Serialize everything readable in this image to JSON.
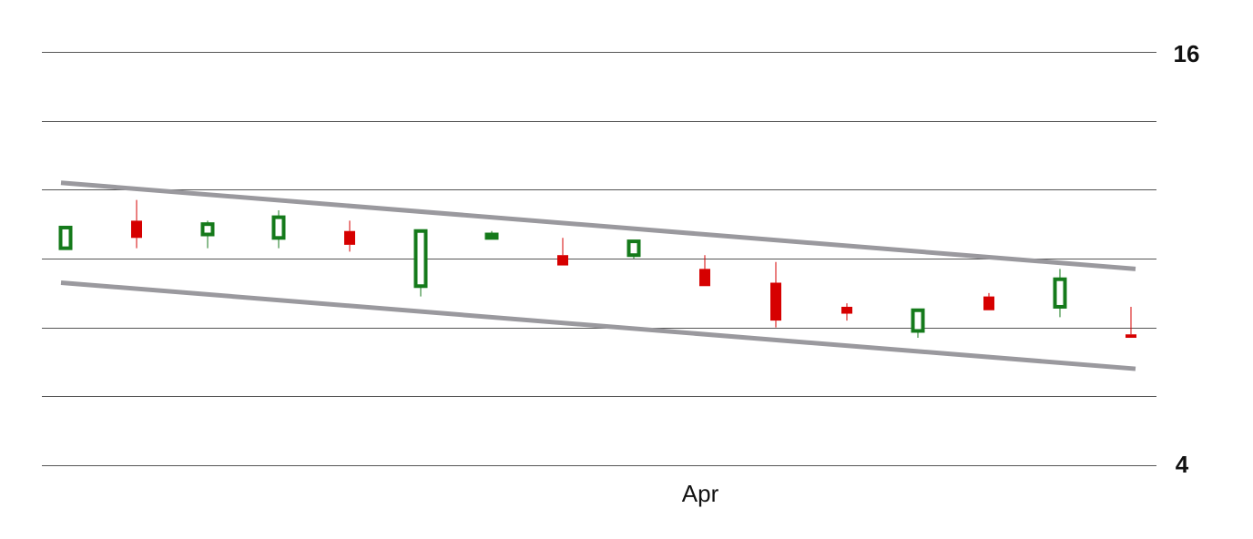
{
  "chart_data": {
    "type": "candlestick",
    "title": "",
    "xlabel": "",
    "ylabel": "",
    "ylim": [
      4,
      16
    ],
    "ytick_labels": [
      "16",
      "4"
    ],
    "yticks_labeled": [
      16,
      4
    ],
    "gridlines": [
      4,
      6,
      8,
      10,
      12,
      14,
      16
    ],
    "grid": true,
    "x_tick_labels": [
      {
        "index": 9,
        "label": "Apr"
      }
    ],
    "colors": {
      "up": "#157a1b",
      "down": "#d60000",
      "trendline": "#9a999e",
      "grid": "#555555"
    },
    "candles": [
      {
        "open": 10.3,
        "close": 10.9,
        "high": 10.9,
        "low": 10.3
      },
      {
        "open": 11.1,
        "close": 10.6,
        "high": 11.7,
        "low": 10.3
      },
      {
        "open": 10.7,
        "close": 11.0,
        "high": 11.1,
        "low": 10.3
      },
      {
        "open": 10.6,
        "close": 11.2,
        "high": 11.4,
        "low": 10.3
      },
      {
        "open": 10.8,
        "close": 10.4,
        "high": 11.1,
        "low": 10.2
      },
      {
        "open": 9.2,
        "close": 10.8,
        "high": 10.8,
        "low": 8.9
      },
      {
        "open": 10.6,
        "close": 10.7,
        "high": 10.8,
        "low": 10.6
      },
      {
        "open": 10.1,
        "close": 9.8,
        "high": 10.6,
        "low": 9.8
      },
      {
        "open": 10.1,
        "close": 10.5,
        "high": 10.5,
        "low": 10.0
      },
      {
        "open": 9.7,
        "close": 9.2,
        "high": 10.1,
        "low": 9.2
      },
      {
        "open": 9.3,
        "close": 8.2,
        "high": 9.9,
        "low": 8.0
      },
      {
        "open": 8.6,
        "close": 8.4,
        "high": 8.7,
        "low": 8.2
      },
      {
        "open": 7.9,
        "close": 8.5,
        "high": 8.5,
        "low": 7.7
      },
      {
        "open": 8.9,
        "close": 8.5,
        "high": 9.0,
        "low": 8.5
      },
      {
        "open": 8.6,
        "close": 9.4,
        "high": 9.7,
        "low": 8.3
      },
      {
        "open": 7.8,
        "close": 7.7,
        "high": 8.6,
        "low": 7.7
      }
    ],
    "trendlines": [
      {
        "name": "upper",
        "start": {
          "index": 0,
          "value": 12.2
        },
        "end": {
          "index": 15,
          "value": 9.7
        }
      },
      {
        "name": "lower",
        "start": {
          "index": 0,
          "value": 9.3
        },
        "end": {
          "index": 15,
          "value": 6.8
        }
      }
    ]
  }
}
